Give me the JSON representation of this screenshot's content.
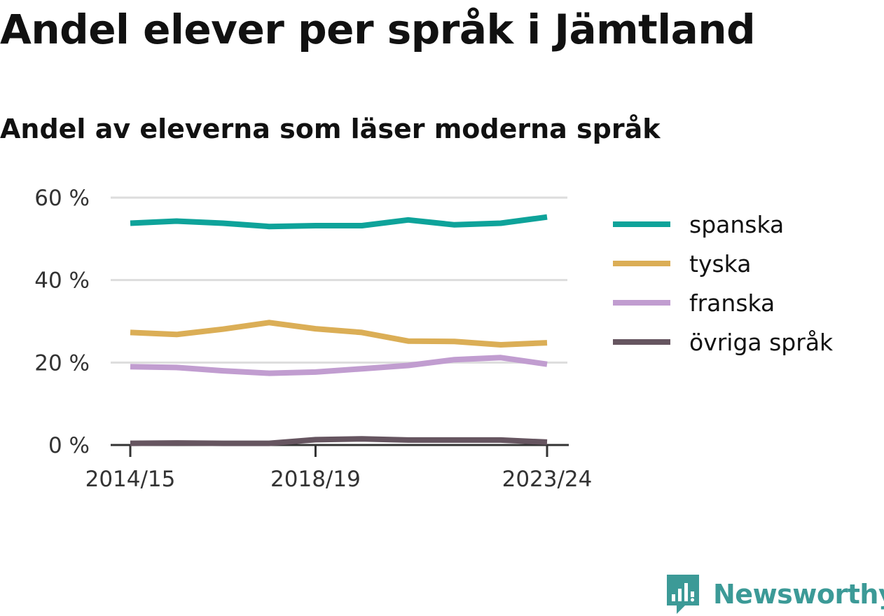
{
  "title": "Andel elever per språk i Jämtland",
  "subtitle": "Andel av eleverna som läser moderna språk",
  "brand": {
    "name": "Newsworthy",
    "icon": "newsworthy-logo-icon",
    "color": "#3c9a97"
  },
  "chart_data": {
    "type": "line",
    "title": "Andel elever per språk i Jämtland",
    "subtitle": "Andel av eleverna som läser moderna språk",
    "x": [
      "2014/15",
      "2015/16",
      "2016/17",
      "2017/18",
      "2018/19",
      "2019/20",
      "2020/21",
      "2021/22",
      "2022/23",
      "2023/24"
    ],
    "x_tick_labels": [
      "2014/15",
      "2018/19",
      "2023/24"
    ],
    "y_ticks": [
      0,
      20,
      40,
      60
    ],
    "y_tick_labels": [
      "0 %",
      "20 %",
      "40 %",
      "60 %"
    ],
    "ylim": [
      0,
      60
    ],
    "grid": true,
    "legend_position": "right",
    "series": [
      {
        "name": "spanska",
        "color": "#0ea39a",
        "values": [
          53.8,
          54.3,
          53.8,
          53.0,
          53.2,
          53.2,
          54.6,
          53.4,
          53.8,
          55.3
        ]
      },
      {
        "name": "tyska",
        "color": "#dbae56",
        "values": [
          27.3,
          26.8,
          28.1,
          29.7,
          28.2,
          27.3,
          25.2,
          25.1,
          24.3,
          24.8
        ]
      },
      {
        "name": "franska",
        "color": "#c19dd0",
        "values": [
          19.0,
          18.8,
          18.0,
          17.4,
          17.7,
          18.5,
          19.3,
          20.7,
          21.2,
          19.6
        ]
      },
      {
        "name": "övriga språk",
        "color": "#665560",
        "values": [
          0.4,
          0.5,
          0.4,
          0.4,
          1.3,
          1.5,
          1.2,
          1.2,
          1.2,
          0.7
        ]
      }
    ]
  }
}
